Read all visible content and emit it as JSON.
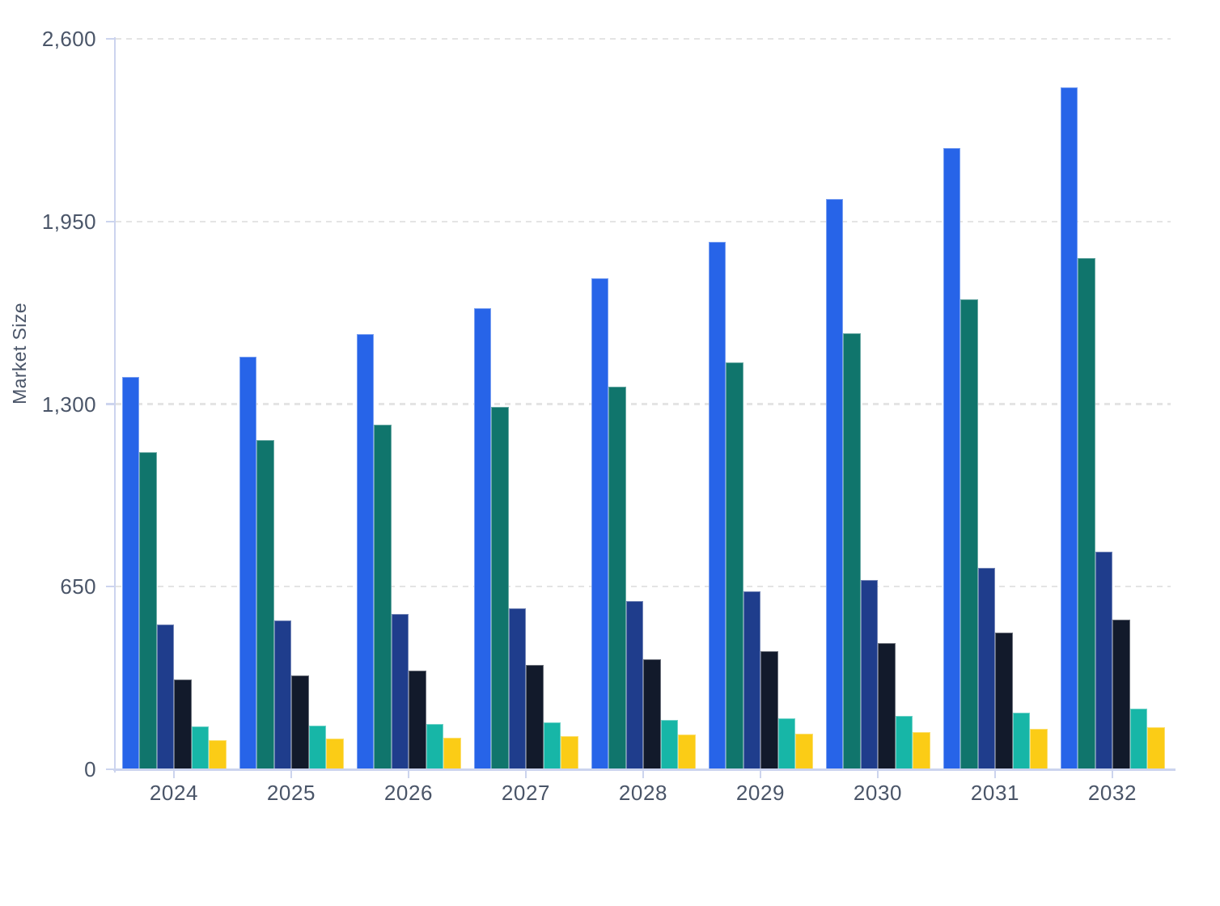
{
  "page": {
    "background": "#ffffff"
  },
  "y_axis": {
    "title": "Market Size",
    "tick_labels": [
      "0",
      "650",
      "1,300",
      "1,950",
      "2,600"
    ],
    "tick_values": [
      0,
      650,
      1300,
      1950,
      2600
    ]
  },
  "x_axis": {
    "categories": [
      "2024",
      "2025",
      "2026",
      "2027",
      "2028",
      "2029",
      "2030",
      "2031",
      "2032"
    ]
  },
  "chart_data": {
    "type": "bar",
    "title": "",
    "xlabel": "",
    "ylabel": "Market Size",
    "ylim": [
      0,
      2600
    ],
    "grid": "horizontal-dashed",
    "legend": "none",
    "categories": [
      "2024",
      "2025",
      "2026",
      "2027",
      "2028",
      "2029",
      "2030",
      "2031",
      "2032"
    ],
    "series": [
      {
        "name": "series-blue",
        "color": "#2764e8",
        "values": [
          1396,
          1468,
          1550,
          1642,
          1749,
          1877,
          2030,
          2210,
          2426
        ]
      },
      {
        "name": "series-teal",
        "color": "#10756c",
        "values": [
          1128,
          1173,
          1226,
          1290,
          1361,
          1447,
          1551,
          1673,
          1820
        ]
      },
      {
        "name": "series-navy",
        "color": "#1f3d8c",
        "values": [
          515,
          531,
          553,
          574,
          600,
          633,
          674,
          718,
          775
        ]
      },
      {
        "name": "series-dark-navy",
        "color": "#121a2b",
        "values": [
          319,
          334,
          350,
          370,
          393,
          420,
          449,
          487,
          534
        ]
      },
      {
        "name": "series-turquoise",
        "color": "#17b6a7",
        "values": [
          153,
          156,
          160,
          166,
          175,
          182,
          190,
          202,
          217
        ]
      },
      {
        "name": "series-yellow",
        "color": "#fbcc16",
        "values": [
          105,
          109,
          112,
          119,
          123,
          127,
          132,
          143,
          150
        ]
      }
    ]
  },
  "style": {
    "axis_color": "#ccd4ee",
    "grid_color": "#e4e4e4",
    "label_color": "#4a5568"
  }
}
